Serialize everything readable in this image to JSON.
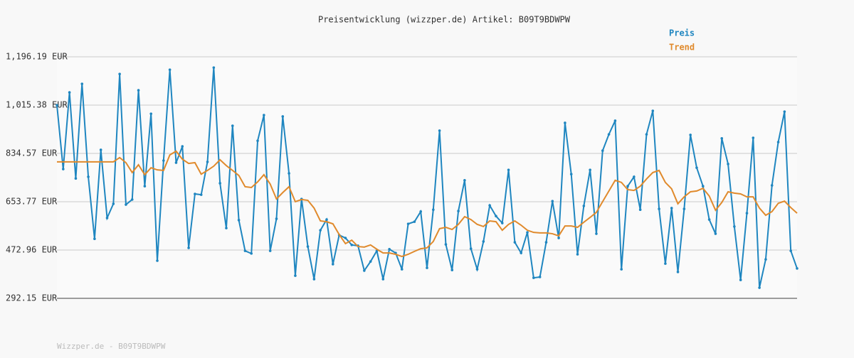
{
  "chart_data": {
    "type": "line",
    "title": "Preisentwicklung (wizzper.de) Artikel: B09T9BDWPW",
    "footer": "Wizzper.de - B09T9BDWPW",
    "ylim": [
      292.15,
      1196.19
    ],
    "yticks": [
      {
        "value": 292.15,
        "label": "292.15 EUR"
      },
      {
        "value": 472.96,
        "label": "472.96 EUR"
      },
      {
        "value": 653.77,
        "label": "653.77 EUR"
      },
      {
        "value": 834.57,
        "label": "834.57 EUR"
      },
      {
        "value": 1015.38,
        "label": "1,015.38 EUR"
      },
      {
        "value": 1196.19,
        "label": "1,196.19 EUR"
      }
    ],
    "grid": true,
    "legend": "top-right",
    "series": [
      {
        "name": "Preis",
        "color": "#1f86c0",
        "markers": true,
        "values": [
          1015,
          776,
          1063,
          741,
          1095,
          747,
          515,
          848,
          593,
          646,
          1132,
          643,
          662,
          1071,
          712,
          983,
          433,
          808,
          1148,
          800,
          861,
          481,
          683,
          680,
          803,
          1156,
          723,
          555,
          938,
          585,
          470,
          460,
          882,
          978,
          470,
          590,
          973,
          760,
          377,
          664,
          486,
          364,
          547,
          587,
          420,
          529,
          518,
          492,
          489,
          396,
          430,
          470,
          364,
          476,
          462,
          401,
          571,
          579,
          617,
          406,
          624,
          920,
          494,
          398,
          619,
          734,
          478,
          401,
          505,
          640,
          600,
          574,
          773,
          502,
          462,
          539,
          369,
          372,
          502,
          656,
          518,
          949,
          757,
          457,
          638,
          773,
          534,
          845,
          906,
          957,
          401,
          712,
          747,
          624,
          906,
          994,
          627,
          422,
          630,
          391,
          627,
          904,
          781,
          712,
          587,
          534,
          891,
          795,
          561,
          361,
          611,
          893,
          332,
          438,
          715,
          877,
          991,
          470,
          404
        ]
      },
      {
        "name": "Trend",
        "color": "#e08a2c",
        "markers": false,
        "values": [
          803,
          803,
          803,
          803,
          803,
          803,
          803,
          803,
          803,
          803,
          819,
          800,
          763,
          792,
          755,
          781,
          773,
          771,
          829,
          843,
          813,
          797,
          800,
          757,
          771,
          787,
          811,
          789,
          771,
          752,
          710,
          707,
          728,
          755,
          720,
          664,
          688,
          710,
          654,
          662,
          659,
          630,
          582,
          579,
          571,
          531,
          497,
          510,
          486,
          484,
          492,
          476,
          462,
          462,
          457,
          449,
          457,
          468,
          478,
          481,
          505,
          553,
          558,
          550,
          569,
          598,
          587,
          569,
          561,
          582,
          579,
          547,
          569,
          582,
          566,
          547,
          539,
          537,
          537,
          534,
          526,
          563,
          563,
          558,
          577,
          595,
          614,
          654,
          694,
          734,
          726,
          699,
          696,
          712,
          739,
          763,
          771,
          726,
          702,
          646,
          672,
          691,
          694,
          704,
          675,
          622,
          651,
          691,
          686,
          683,
          672,
          672,
          630,
          603,
          617,
          648,
          656,
          632,
          611
        ]
      }
    ]
  }
}
